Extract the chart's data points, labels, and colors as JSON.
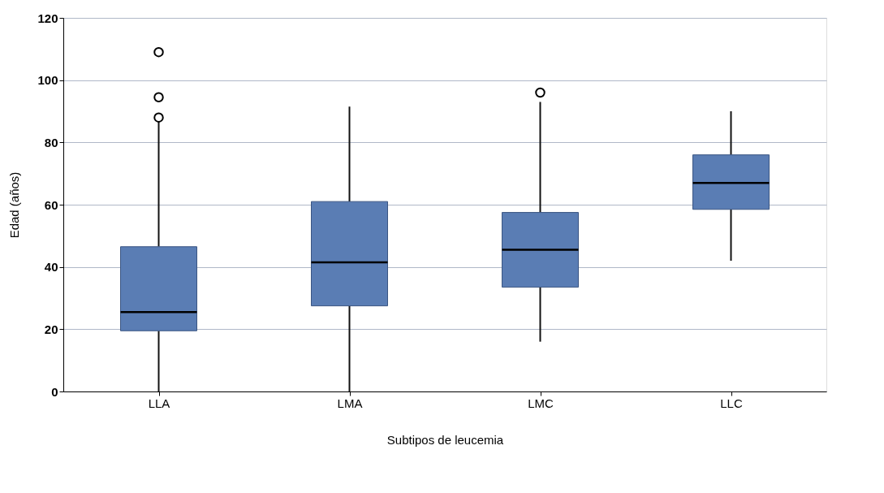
{
  "chart_data": {
    "type": "box",
    "xlabel": "Subtipos de leucemia",
    "ylabel": "Edad (años)",
    "categories": [
      "LLA",
      "LMA",
      "LMC",
      "LLC"
    ],
    "color": "#5a7db4",
    "boxes": [
      {
        "low": 0,
        "q1": 19.5,
        "median": 25.5,
        "q3": 46.5,
        "high": 87,
        "outliers": [
          88,
          94.5,
          109
        ]
      },
      {
        "low": 0,
        "q1": 27.5,
        "median": 41.5,
        "q3": 61,
        "high": 91.5
      },
      {
        "low": 16,
        "q1": 33.5,
        "median": 45.5,
        "q3": 57.5,
        "high": 93,
        "outliers": [
          96
        ]
      },
      {
        "low": 42,
        "q1": 58.5,
        "median": 67,
        "q3": 76,
        "high": 90
      }
    ],
    "ylim": [
      0,
      120
    ],
    "yticks": [
      0,
      20,
      40,
      60,
      80,
      100,
      120
    ],
    "grid": "y"
  }
}
